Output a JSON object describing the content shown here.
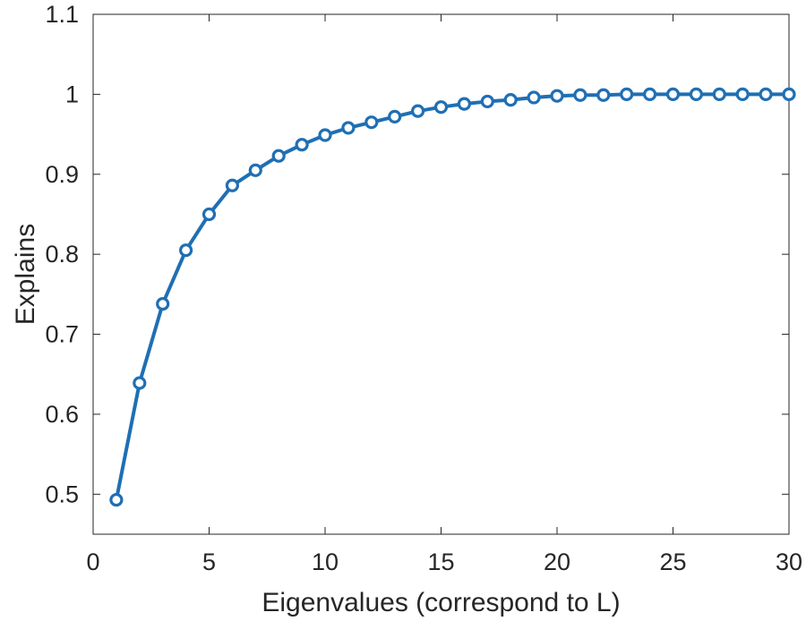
{
  "chart_data": {
    "type": "line",
    "title": "",
    "xlabel": "Eigenvalues (correspond to L)",
    "ylabel": "Explains",
    "xlim": [
      0,
      30
    ],
    "ylim": [
      0.45,
      1.1
    ],
    "xticks": [
      0,
      5,
      10,
      15,
      20,
      25,
      30
    ],
    "xtick_labels": [
      "0",
      "5",
      "10",
      "15",
      "20",
      "25",
      "30"
    ],
    "yticks": [
      0.5,
      0.6,
      0.7,
      0.8,
      0.9,
      1.0,
      1.1
    ],
    "ytick_labels": [
      "0.5",
      "0.6",
      "0.7",
      "0.8",
      "0.9",
      "1",
      "1.1"
    ],
    "grid": false,
    "box": true,
    "series": [
      {
        "name": "Explains",
        "color": "#1f6fb4",
        "marker": "circle",
        "x": [
          1,
          2,
          3,
          4,
          5,
          6,
          7,
          8,
          9,
          10,
          11,
          12,
          13,
          14,
          15,
          16,
          17,
          18,
          19,
          20,
          21,
          22,
          23,
          24,
          25,
          26,
          27,
          28,
          29,
          30
        ],
        "y": [
          0.493,
          0.639,
          0.738,
          0.805,
          0.85,
          0.886,
          0.905,
          0.923,
          0.937,
          0.949,
          0.958,
          0.965,
          0.972,
          0.979,
          0.984,
          0.988,
          0.991,
          0.993,
          0.996,
          0.998,
          0.999,
          0.999,
          1.0,
          1.0,
          1.0,
          1.0,
          1.0,
          1.0,
          1.0,
          1.0
        ]
      }
    ]
  },
  "colors": {
    "axis": "#262626",
    "line": "#1f6fb4",
    "background": "#ffffff"
  }
}
